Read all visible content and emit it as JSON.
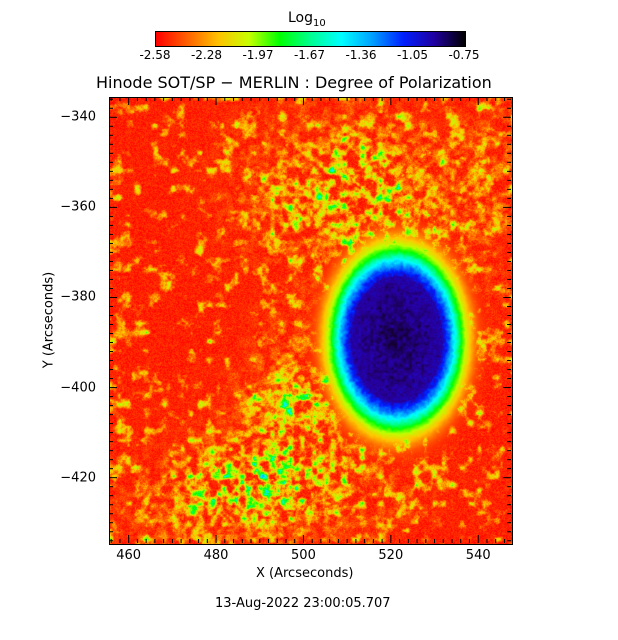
{
  "colorbar": {
    "label": "Log",
    "label_sub": "10",
    "ticks": [
      "-2.58",
      "-2.28",
      "-1.97",
      "-1.67",
      "-1.36",
      "-1.05",
      "-0.75"
    ],
    "colors": [
      "#ff0000",
      "#ff6000",
      "#ffc000",
      "#c8ff00",
      "#00ff00",
      "#00ff90",
      "#00ffff",
      "#00a0ff",
      "#0020ff",
      "#2000a0",
      "#000000"
    ]
  },
  "title": "Hinode SOT/SP − MERLIN : Degree of Polarization",
  "xlabel": "X (Arcseconds)",
  "ylabel": "Y (Arcseconds)",
  "x_ticks": [
    "460",
    "480",
    "500",
    "520",
    "540"
  ],
  "y_ticks": [
    "−340",
    "−360",
    "−380",
    "−400",
    "−420"
  ],
  "timestamp": "13-Aug-2022 23:00:05.707",
  "map": {
    "xrange": [
      455.5,
      547.5
    ],
    "yrange": [
      -434.5,
      -335.5
    ],
    "sunspot_center": [
      521,
      -389
    ],
    "background_color": "#ff2a00"
  }
}
